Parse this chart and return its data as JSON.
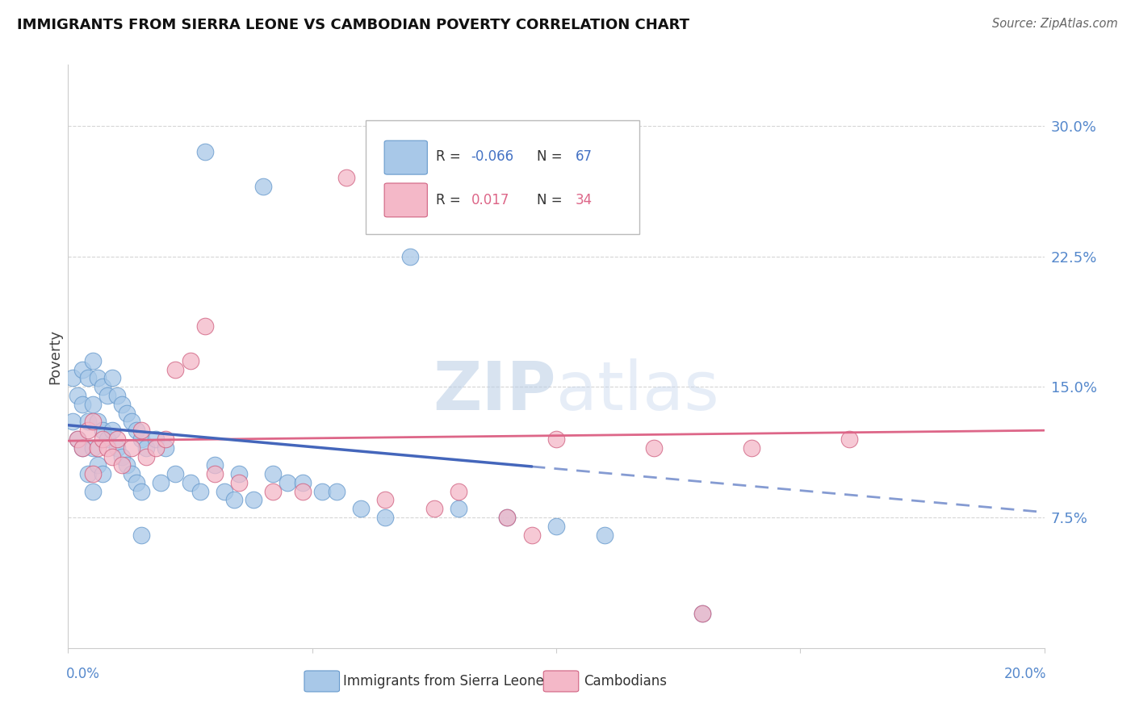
{
  "title": "IMMIGRANTS FROM SIERRA LEONE VS CAMBODIAN POVERTY CORRELATION CHART",
  "source": "Source: ZipAtlas.com",
  "ylabel": "Poverty",
  "y_ticks": [
    0.075,
    0.15,
    0.225,
    0.3
  ],
  "y_tick_labels": [
    "7.5%",
    "15.0%",
    "22.5%",
    "30.0%"
  ],
  "x_range": [
    0.0,
    0.2
  ],
  "y_range": [
    0.0,
    0.335
  ],
  "blue_R": "-0.066",
  "blue_N": "67",
  "pink_R": "0.017",
  "pink_N": "34",
  "blue_color": "#A8C8E8",
  "blue_edge_color": "#6699CC",
  "pink_color": "#F4B8C8",
  "pink_edge_color": "#D06080",
  "blue_line_color": "#4466BB",
  "pink_line_color": "#DD6688",
  "blue_line_start_y": 0.128,
  "blue_line_end_y": 0.078,
  "blue_line_solid_end_x": 0.095,
  "pink_line_start_y": 0.119,
  "pink_line_end_y": 0.125,
  "watermark_color": "#C8D8EC",
  "grid_color": "#CCCCCC",
  "right_tick_color": "#5588CC",
  "xlabel_color": "#5588CC",
  "title_color": "#111111",
  "source_color": "#666666"
}
